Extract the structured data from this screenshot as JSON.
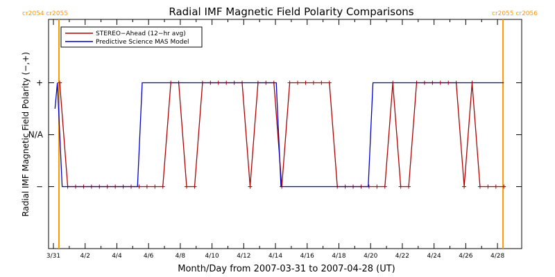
{
  "chart_data": {
    "type": "line",
    "title": "Radial IMF Magnetic Field Polarity Comparisons",
    "xlabel": "Month/Day from 2007-03-31 to 2007-04-28 (UT)",
    "ylabel": "Radial IMF Magnetic Field Polarity (−,+)",
    "x_ticks": [
      {
        "day": 0,
        "label": "3/31"
      },
      {
        "day": 2,
        "label": "4/2"
      },
      {
        "day": 4,
        "label": "4/4"
      },
      {
        "day": 6,
        "label": "4/6"
      },
      {
        "day": 8,
        "label": "4/8"
      },
      {
        "day": 10,
        "label": "4/10"
      },
      {
        "day": 12,
        "label": "4/12"
      },
      {
        "day": 14,
        "label": "4/14"
      },
      {
        "day": 16,
        "label": "4/16"
      },
      {
        "day": 18,
        "label": "4/18"
      },
      {
        "day": 20,
        "label": "4/20"
      },
      {
        "day": 22,
        "label": "4/22"
      },
      {
        "day": 24,
        "label": "4/24"
      },
      {
        "day": 26,
        "label": "4/26"
      },
      {
        "day": 28,
        "label": "4/28"
      }
    ],
    "y_ticks": [
      {
        "value": 1,
        "label": "+"
      },
      {
        "value": 0,
        "label": "N/A"
      },
      {
        "value": -1,
        "label": "−"
      }
    ],
    "xlim": [
      0,
      28.8
    ],
    "ylim": [
      -2,
      2
    ],
    "legend_position": "top-left",
    "carrington_markers": [
      {
        "day": 0.35,
        "label": "cr2054 cr2055",
        "label_side": "left"
      },
      {
        "day": 28.35,
        "label": "cr2055 cr2056",
        "label_side": "right"
      }
    ],
    "colors": {
      "marker": "#ff9900",
      "stereo": "#b00000",
      "mas": "#0000cc"
    },
    "series": [
      {
        "name": "STEREO−Ahead (12−hr avg)",
        "color": "#b00000",
        "markers": true,
        "x": [
          0.4,
          0.9,
          1.4,
          1.9,
          2.4,
          2.9,
          3.4,
          3.9,
          4.4,
          4.9,
          5.4,
          5.9,
          6.4,
          6.9,
          7.4,
          7.9,
          8.4,
          8.9,
          9.4,
          9.9,
          10.4,
          10.9,
          11.4,
          11.9,
          12.4,
          12.9,
          13.4,
          13.9,
          14.4,
          14.9,
          15.4,
          15.9,
          16.4,
          16.9,
          17.4,
          17.9,
          18.4,
          18.9,
          19.4,
          19.9,
          20.4,
          20.9,
          21.4,
          21.9,
          22.4,
          22.9,
          23.4,
          23.9,
          24.4,
          24.9,
          25.4,
          25.9,
          26.4,
          26.9,
          27.4,
          27.9,
          28.4
        ],
        "y": [
          1,
          -1,
          -1,
          -1,
          -1,
          -1,
          -1,
          -1,
          -1,
          -1,
          -1,
          -1,
          -1,
          -1,
          1,
          1,
          -1,
          -1,
          1,
          1,
          1,
          1,
          1,
          1,
          -1,
          1,
          1,
          1,
          -1,
          1,
          1,
          1,
          1,
          1,
          1,
          -1,
          -1,
          -1,
          -1,
          -1,
          -1,
          -1,
          1,
          -1,
          -1,
          1,
          1,
          1,
          1,
          1,
          1,
          -1,
          1,
          -1,
          -1,
          -1,
          -1
        ]
      },
      {
        "name": "Predictive Science MAS Model",
        "color": "#0000cc",
        "markers": false,
        "x": [
          0.1,
          0.25,
          0.55,
          5.3,
          5.6,
          14.05,
          14.35,
          19.85,
          20.15,
          28.4
        ],
        "y": [
          0.5,
          1,
          -1,
          -1,
          1,
          1,
          -1,
          -1,
          1,
          1
        ]
      }
    ]
  }
}
